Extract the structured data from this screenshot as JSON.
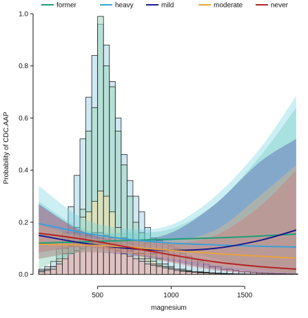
{
  "chart_data": {
    "type": "line",
    "title": "",
    "xlabel": "magnesium",
    "ylabel": "Probability of CDC.AAP",
    "xlim": [
      80,
      1860
    ],
    "ylim": [
      -0.03,
      1.0
    ],
    "x_ticks": [
      500,
      1000,
      1500
    ],
    "y_ticks": [
      0.0,
      0.2,
      0.4,
      0.6,
      0.8,
      1.0
    ],
    "grid": false,
    "legend_position": "top",
    "series": [
      {
        "name": "former",
        "color": "#1b9e77",
        "band_color": "#66c2a5",
        "x": [
          100,
          400,
          700,
          1000,
          1300,
          1600,
          1850
        ],
        "y": [
          0.12,
          0.125,
          0.13,
          0.135,
          0.14,
          0.147,
          0.155
        ],
        "lower": [
          0.02,
          0.09,
          0.11,
          0.1,
          0.06,
          0.02,
          0.005
        ],
        "upper": [
          0.28,
          0.175,
          0.16,
          0.175,
          0.27,
          0.45,
          0.64
        ]
      },
      {
        "name": "heavy",
        "color": "#3aa0d8",
        "band_color": "#6ed0df",
        "x": [
          100,
          400,
          700,
          1000,
          1300,
          1600,
          1850
        ],
        "y": [
          0.195,
          0.16,
          0.135,
          0.12,
          0.113,
          0.108,
          0.105
        ],
        "lower": [
          0.08,
          0.11,
          0.105,
          0.07,
          0.03,
          0.01,
          0.002
        ],
        "upper": [
          0.34,
          0.215,
          0.175,
          0.19,
          0.3,
          0.48,
          0.685
        ]
      },
      {
        "name": "mild",
        "color": "#1a1a8a",
        "band_color": "#3f3fa0",
        "x": [
          100,
          400,
          700,
          1000,
          1300,
          1600,
          1850
        ],
        "y": [
          0.15,
          0.12,
          0.1,
          0.092,
          0.1,
          0.13,
          0.17
        ],
        "lower": [
          0.06,
          0.085,
          0.075,
          0.05,
          0.02,
          0.005,
          0.002
        ],
        "upper": [
          0.27,
          0.165,
          0.13,
          0.16,
          0.27,
          0.43,
          0.52
        ]
      },
      {
        "name": "moderate",
        "color": "#e8a33c",
        "band_color": "#f0c67a",
        "x": [
          100,
          400,
          700,
          1000,
          1300,
          1600,
          1850
        ],
        "y": [
          0.115,
          0.113,
          0.105,
          0.092,
          0.08,
          0.07,
          0.062
        ],
        "lower": [
          0.06,
          0.085,
          0.08,
          0.06,
          0.035,
          0.015,
          0.005
        ],
        "upper": [
          0.19,
          0.145,
          0.13,
          0.13,
          0.17,
          0.3,
          0.42
        ]
      },
      {
        "name": "never",
        "color": "#b22222",
        "band_color": "#d96c6c",
        "x": [
          100,
          400,
          700,
          1000,
          1300,
          1600,
          1850
        ],
        "y": [
          0.158,
          0.135,
          0.105,
          0.075,
          0.048,
          0.03,
          0.02
        ],
        "lower": [
          0.085,
          0.105,
          0.08,
          0.045,
          0.015,
          0.003,
          0.001
        ],
        "upper": [
          0.265,
          0.165,
          0.135,
          0.12,
          0.15,
          0.26,
          0.4
        ]
      }
    ],
    "histograms": {
      "bin_start": 100,
      "bin_width": 40,
      "groups": [
        {
          "name": "heavy",
          "color": "#a7d6e6",
          "values": [
            0.02,
            0.03,
            0.05,
            0.1,
            0.16,
            0.26,
            0.38,
            0.52,
            0.68,
            0.84,
            0.96,
            0.88,
            0.74,
            0.6,
            0.46,
            0.36,
            0.3,
            0.24,
            0.18,
            0.14,
            0.13,
            0.12,
            0.11,
            0.1,
            0.08,
            0.07,
            0.06,
            0.05,
            0.04,
            0.03,
            0.03,
            0.02,
            0.02,
            0.015,
            0.01,
            0.01,
            0.008,
            0.006,
            0.005,
            0.004,
            0.003,
            0.003,
            0.002,
            0.002
          ]
        },
        {
          "name": "former",
          "color": "#a3d9c1",
          "values": [
            0.01,
            0.02,
            0.03,
            0.05,
            0.08,
            0.12,
            0.18,
            0.25,
            0.55,
            0.64,
            0.99,
            0.8,
            0.72,
            0.55,
            0.42,
            0.3,
            0.2,
            0.16,
            0.12,
            0.08,
            0.06,
            0.04,
            0.03,
            0.02,
            0.02,
            0.015,
            0.01,
            0.01,
            0.008,
            0.006,
            0.005,
            0.004,
            0.003,
            0.002,
            0.002,
            0.001,
            0.001,
            0.001,
            0.001,
            0.001,
            0.001,
            0.001,
            0.001,
            0.001
          ]
        },
        {
          "name": "moderate",
          "color": "#f4e2a9",
          "values": [
            0.01,
            0.02,
            0.03,
            0.06,
            0.1,
            0.14,
            0.16,
            0.22,
            0.24,
            0.28,
            0.32,
            0.3,
            0.24,
            0.18,
            0.14,
            0.12,
            0.1,
            0.08,
            0.06,
            0.05,
            0.04,
            0.03,
            0.02,
            0.02,
            0.015,
            0.01,
            0.01,
            0.008,
            0.006,
            0.005,
            0.004,
            0.003,
            0.002,
            0.002,
            0.001,
            0.001,
            0.001,
            0.001,
            0.001,
            0.001,
            0.001,
            0.001,
            0.001,
            0.001
          ]
        },
        {
          "name": "mild",
          "color": "#c0c4dd",
          "values": [
            0.015,
            0.02,
            0.03,
            0.05,
            0.08,
            0.11,
            0.12,
            0.14,
            0.15,
            0.16,
            0.16,
            0.15,
            0.14,
            0.12,
            0.1,
            0.09,
            0.08,
            0.06,
            0.05,
            0.04,
            0.035,
            0.03,
            0.025,
            0.02,
            0.015,
            0.012,
            0.01,
            0.008,
            0.006,
            0.005,
            0.004,
            0.003,
            0.002,
            0.002,
            0.001,
            0.001,
            0.001,
            0.001,
            0.001,
            0.001,
            0.001,
            0.001,
            0.001,
            0.001
          ]
        },
        {
          "name": "never",
          "color": "#efb6b6",
          "values": [
            0.01,
            0.015,
            0.02,
            0.04,
            0.06,
            0.08,
            0.09,
            0.1,
            0.11,
            0.12,
            0.12,
            0.11,
            0.1,
            0.09,
            0.08,
            0.07,
            0.06,
            0.05,
            0.04,
            0.035,
            0.03,
            0.025,
            0.02,
            0.015,
            0.012,
            0.01,
            0.008,
            0.006,
            0.005,
            0.004,
            0.003,
            0.002,
            0.002,
            0.001,
            0.001,
            0.001,
            0.001,
            0.001,
            0.001,
            0.001,
            0.001,
            0.001,
            0.001,
            0.001
          ]
        }
      ]
    }
  }
}
